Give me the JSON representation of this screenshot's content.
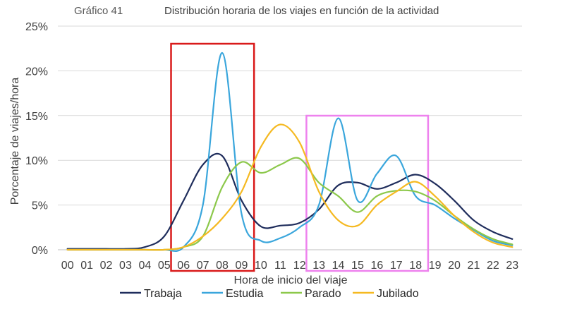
{
  "chart_data": {
    "type": "line",
    "label": "Gráfico 41",
    "title": "Distribución horaria de los viajes en función de la actividad",
    "xlabel": "Hora de inicio del viaje",
    "ylabel": "Porcentaje de viajes/hora",
    "ylim": [
      0,
      25
    ],
    "yticks": [
      "0%",
      "5%",
      "10%",
      "15%",
      "20%",
      "25%"
    ],
    "grid": true,
    "legend_position": "bottom",
    "categories": [
      "00",
      "01",
      "02",
      "03",
      "04",
      "05",
      "06",
      "07",
      "08",
      "09",
      "10",
      "11",
      "12",
      "13",
      "14",
      "15",
      "16",
      "17",
      "18",
      "19",
      "20",
      "21",
      "22",
      "23"
    ],
    "series": [
      {
        "name": "Trabaja",
        "color": "#1f2d5c",
        "values": [
          0.1,
          0.1,
          0.1,
          0.1,
          0.3,
          1.5,
          5.5,
          9.5,
          10.5,
          5.5,
          2.6,
          2.7,
          3.0,
          4.5,
          7.2,
          7.5,
          6.8,
          7.5,
          8.4,
          7.4,
          5.5,
          3.3,
          2.0,
          1.2
        ]
      },
      {
        "name": "Estudia",
        "color": "#3aa6dc",
        "values": [
          0.0,
          0.0,
          0.0,
          0.0,
          0.0,
          0.0,
          0.3,
          5.0,
          22.0,
          4.0,
          1.0,
          1.3,
          2.5,
          5.0,
          14.7,
          5.5,
          8.5,
          10.5,
          6.0,
          5.0,
          3.5,
          2.2,
          1.0,
          0.5
        ]
      },
      {
        "name": "Parado",
        "color": "#8cc84b",
        "values": [
          0.0,
          0.0,
          0.0,
          0.0,
          0.0,
          0.0,
          0.3,
          1.5,
          7.0,
          9.8,
          8.6,
          9.5,
          10.2,
          7.5,
          6.0,
          4.2,
          6.0,
          6.6,
          6.5,
          5.5,
          3.8,
          2.3,
          1.2,
          0.6
        ]
      },
      {
        "name": "Jubilado",
        "color": "#f5b921",
        "values": [
          0.0,
          0.0,
          0.0,
          0.0,
          0.0,
          0.0,
          0.3,
          1.5,
          3.5,
          6.5,
          11.5,
          14.0,
          12.0,
          6.5,
          3.3,
          2.7,
          5.0,
          6.5,
          7.6,
          6.0,
          3.8,
          2.0,
          0.8,
          0.3
        ]
      }
    ],
    "annotations": [
      {
        "type": "box",
        "color": "#d91a1a",
        "x_range": [
          "06",
          "09"
        ]
      },
      {
        "type": "box",
        "color": "#ee82ee",
        "x_range": [
          "13",
          "18"
        ]
      }
    ]
  }
}
